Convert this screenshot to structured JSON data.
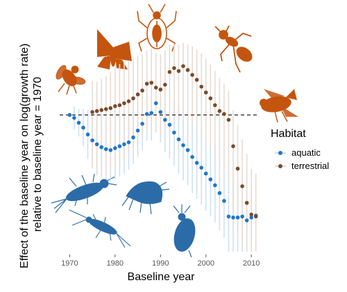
{
  "chart_data": {
    "type": "scatter",
    "xlabel": "Baseline year",
    "ylabel_lines": [
      "Effect of the baseline year on log(growth rate)",
      "relative to baseline year = 1970"
    ],
    "x_ticks": [
      1970,
      1980,
      1990,
      2000,
      2010
    ],
    "xlim": [
      1967.5,
      2011.5
    ],
    "ylim": [
      -1.4,
      0.75
    ],
    "reference_line_y": 0,
    "reference_line_style": "dashed",
    "grid": false,
    "legend": {
      "title": "Habitat",
      "placement": "right"
    },
    "series": [
      {
        "name": "aquatic",
        "color": "#1f77c9",
        "interval_color": "#cfe0f0",
        "points": [
          {
            "x": 1970,
            "y": 0.0,
            "lo": 0.0,
            "hi": 0.0
          },
          {
            "x": 1971,
            "y": -0.03,
            "lo": -0.15,
            "hi": 0.09
          },
          {
            "x": 1972,
            "y": -0.08,
            "lo": -0.22,
            "hi": 0.06
          },
          {
            "x": 1973,
            "y": -0.13,
            "lo": -0.32,
            "hi": 0.06
          },
          {
            "x": 1974,
            "y": -0.2,
            "lo": -0.45,
            "hi": 0.05
          },
          {
            "x": 1975,
            "y": -0.26,
            "lo": -0.53,
            "hi": 0.01
          },
          {
            "x": 1976,
            "y": -0.3,
            "lo": -0.6,
            "hi": 0.0
          },
          {
            "x": 1977,
            "y": -0.33,
            "lo": -0.64,
            "hi": -0.02
          },
          {
            "x": 1978,
            "y": -0.35,
            "lo": -0.66,
            "hi": -0.04
          },
          {
            "x": 1979,
            "y": -0.36,
            "lo": -0.68,
            "hi": -0.04
          },
          {
            "x": 1980,
            "y": -0.34,
            "lo": -0.66,
            "hi": -0.02
          },
          {
            "x": 1981,
            "y": -0.32,
            "lo": -0.63,
            "hi": -0.01
          },
          {
            "x": 1982,
            "y": -0.3,
            "lo": -0.6,
            "hi": 0.0
          },
          {
            "x": 1983,
            "y": -0.28,
            "lo": -0.56,
            "hi": 0.0
          },
          {
            "x": 1984,
            "y": -0.23,
            "lo": -0.5,
            "hi": 0.04
          },
          {
            "x": 1985,
            "y": -0.16,
            "lo": -0.43,
            "hi": 0.11
          },
          {
            "x": 1986,
            "y": -0.09,
            "lo": -0.36,
            "hi": 0.18
          },
          {
            "x": 1987,
            "y": 0.01,
            "lo": -0.26,
            "hi": 0.28
          },
          {
            "x": 1988,
            "y": 0.02,
            "lo": -0.26,
            "hi": 0.3
          },
          {
            "x": 1989,
            "y": 0.12,
            "lo": -0.18,
            "hi": 0.42
          },
          {
            "x": 1990,
            "y": 0.03,
            "lo": -0.28,
            "hi": 0.34
          },
          {
            "x": 1991,
            "y": -0.05,
            "lo": -0.38,
            "hi": 0.28
          },
          {
            "x": 1992,
            "y": -0.1,
            "lo": -0.44,
            "hi": 0.24
          },
          {
            "x": 1993,
            "y": -0.18,
            "lo": -0.52,
            "hi": 0.16
          },
          {
            "x": 1994,
            "y": -0.25,
            "lo": -0.6,
            "hi": 0.1
          },
          {
            "x": 1995,
            "y": -0.31,
            "lo": -0.67,
            "hi": 0.05
          },
          {
            "x": 1996,
            "y": -0.36,
            "lo": -0.72,
            "hi": 0.0
          },
          {
            "x": 1997,
            "y": -0.43,
            "lo": -0.8,
            "hi": -0.06
          },
          {
            "x": 1998,
            "y": -0.49,
            "lo": -0.86,
            "hi": -0.12
          },
          {
            "x": 1999,
            "y": -0.54,
            "lo": -0.92,
            "hi": -0.16
          },
          {
            "x": 2000,
            "y": -0.6,
            "lo": -0.98,
            "hi": -0.22
          },
          {
            "x": 2001,
            "y": -0.66,
            "lo": -1.04,
            "hi": -0.28
          },
          {
            "x": 2002,
            "y": -0.72,
            "lo": -1.1,
            "hi": -0.34
          },
          {
            "x": 2003,
            "y": -0.8,
            "lo": -1.18,
            "hi": -0.42
          },
          {
            "x": 2004,
            "y": -0.88,
            "lo": -1.26,
            "hi": -0.5
          },
          {
            "x": 2005,
            "y": -1.04,
            "lo": -1.4,
            "hi": -0.66
          },
          {
            "x": 2006,
            "y": -1.05,
            "lo": -1.4,
            "hi": -0.68
          },
          {
            "x": 2007,
            "y": -1.05,
            "lo": -1.4,
            "hi": -0.68
          },
          {
            "x": 2008,
            "y": -1.04,
            "lo": -1.4,
            "hi": -0.66
          },
          {
            "x": 2009,
            "y": -1.08,
            "lo": -1.4,
            "hi": -0.7
          },
          {
            "x": 2010,
            "y": -1.05,
            "lo": -1.4,
            "hi": -0.7
          },
          {
            "x": 2011,
            "y": -1.03,
            "lo": -1.4,
            "hi": -0.7
          }
        ]
      },
      {
        "name": "terrestrial",
        "color": "#7a4a2a",
        "interval_color": "#e7dbd3",
        "points": [
          {
            "x": 1975,
            "y": 0.03,
            "lo": -0.55,
            "hi": 0.35
          },
          {
            "x": 1976,
            "y": 0.04,
            "lo": -0.62,
            "hi": 0.34
          },
          {
            "x": 1977,
            "y": 0.05,
            "lo": -0.64,
            "hi": 0.37
          },
          {
            "x": 1978,
            "y": 0.06,
            "lo": -0.66,
            "hi": 0.4
          },
          {
            "x": 1979,
            "y": 0.07,
            "lo": -0.6,
            "hi": 0.44
          },
          {
            "x": 1980,
            "y": 0.09,
            "lo": -0.55,
            "hi": 0.5
          },
          {
            "x": 1981,
            "y": 0.1,
            "lo": -0.5,
            "hi": 0.52
          },
          {
            "x": 1982,
            "y": 0.12,
            "lo": -0.44,
            "hi": 0.54
          },
          {
            "x": 1983,
            "y": 0.14,
            "lo": -0.38,
            "hi": 0.56
          },
          {
            "x": 1984,
            "y": 0.17,
            "lo": -0.32,
            "hi": 0.58
          },
          {
            "x": 1985,
            "y": 0.21,
            "lo": -0.28,
            "hi": 0.6
          },
          {
            "x": 1986,
            "y": 0.25,
            "lo": -0.22,
            "hi": 0.62
          },
          {
            "x": 1987,
            "y": 0.32,
            "lo": -0.15,
            "hi": 0.66
          },
          {
            "x": 1988,
            "y": 0.33,
            "lo": -0.12,
            "hi": 0.68
          },
          {
            "x": 1989,
            "y": 0.28,
            "lo": -0.18,
            "hi": 0.64
          },
          {
            "x": 1990,
            "y": 0.26,
            "lo": -0.2,
            "hi": 0.62
          },
          {
            "x": 1991,
            "y": 0.31,
            "lo": -0.16,
            "hi": 0.66
          },
          {
            "x": 1992,
            "y": 0.44,
            "lo": -0.06,
            "hi": 0.72
          },
          {
            "x": 1993,
            "y": 0.48,
            "lo": -0.02,
            "hi": 0.73
          },
          {
            "x": 1994,
            "y": 0.45,
            "lo": -0.06,
            "hi": 0.72
          },
          {
            "x": 1995,
            "y": 0.5,
            "lo": 0.0,
            "hi": 0.74
          },
          {
            "x": 1996,
            "y": 0.46,
            "lo": -0.05,
            "hi": 0.72
          },
          {
            "x": 1997,
            "y": 0.41,
            "lo": -0.1,
            "hi": 0.7
          },
          {
            "x": 1998,
            "y": 0.36,
            "lo": -0.15,
            "hi": 0.67
          },
          {
            "x": 1999,
            "y": 0.29,
            "lo": -0.2,
            "hi": 0.63
          },
          {
            "x": 2000,
            "y": 0.23,
            "lo": -0.26,
            "hi": 0.58
          },
          {
            "x": 2001,
            "y": 0.17,
            "lo": -0.32,
            "hi": 0.52
          },
          {
            "x": 2002,
            "y": 0.1,
            "lo": -0.4,
            "hi": 0.45
          },
          {
            "x": 2003,
            "y": 0.04,
            "lo": -0.48,
            "hi": 0.38
          },
          {
            "x": 2004,
            "y": 0.01,
            "lo": -0.55,
            "hi": 0.32
          },
          {
            "x": 2005,
            "y": -0.05,
            "lo": -0.7,
            "hi": 0.25
          },
          {
            "x": 2006,
            "y": -0.32,
            "lo": -1.0,
            "hi": 0.05
          },
          {
            "x": 2007,
            "y": -0.55,
            "lo": -1.2,
            "hi": -0.1
          },
          {
            "x": 2008,
            "y": -0.73,
            "lo": -1.35,
            "hi": -0.25
          },
          {
            "x": 2009,
            "y": -0.9,
            "lo": -1.4,
            "hi": -0.4
          },
          {
            "x": 2010,
            "y": -1.02,
            "lo": -1.4,
            "hi": -0.55
          },
          {
            "x": 2011,
            "y": -1.04,
            "lo": -1.4,
            "hi": -0.6
          }
        ]
      }
    ]
  },
  "silhouettes": {
    "terrestrial": [
      {
        "name": "bee-icon",
        "color": "#c4550f"
      },
      {
        "name": "moth-icon",
        "color": "#c4550f"
      },
      {
        "name": "beetle-icon",
        "color": "#c4550f"
      },
      {
        "name": "ant-icon",
        "color": "#c4550f"
      },
      {
        "name": "fly-icon",
        "color": "#c4550f"
      }
    ],
    "aquatic": [
      {
        "name": "mayfly-larva-icon",
        "color": "#2b6ca8"
      },
      {
        "name": "amphipod-icon",
        "color": "#2b6ca8"
      },
      {
        "name": "stonefly-larva-icon",
        "color": "#2b6ca8"
      },
      {
        "name": "water-flea-icon",
        "color": "#2b6ca8"
      }
    ]
  }
}
